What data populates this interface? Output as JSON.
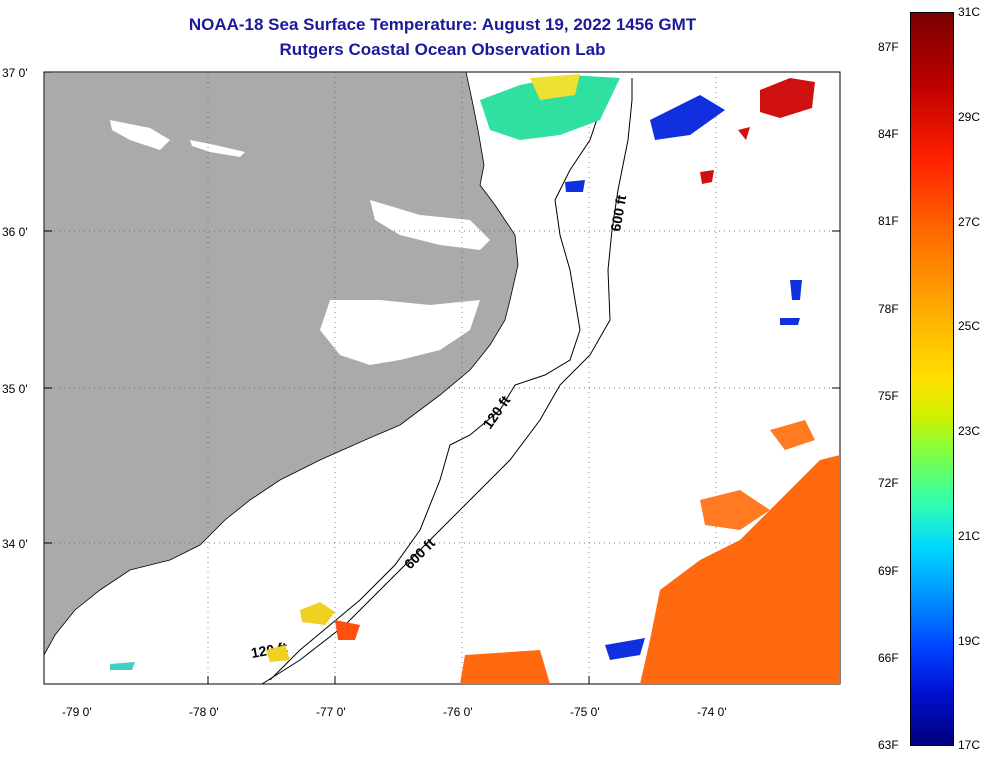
{
  "title_line1": "NOAA-18 Sea Surface Temperature:  August 19, 2022 1456 GMT",
  "title_line2": "Rutgers Coastal Ocean Observation Lab",
  "lat_labels": [
    "37 0'",
    "36 0'",
    "35 0'",
    "34 0'"
  ],
  "lon_labels": [
    "-79 0'",
    "-78 0'",
    "-77 0'",
    "-76 0'",
    "-75 0'",
    "-74 0'"
  ],
  "isobaths": {
    "shallow": "120 ft",
    "deep": "600 ft"
  },
  "colorbar": {
    "fahrenheit": [
      "87F",
      "84F",
      "81F",
      "78F",
      "75F",
      "72F",
      "69F",
      "66F",
      "63F"
    ],
    "celsius": [
      "31C",
      "29C",
      "27C",
      "25C",
      "23C",
      "21C",
      "19C",
      "17C"
    ]
  },
  "colors": {
    "land": "#aaaaaa",
    "title": "#1a1a9a",
    "warm": "#ff6a10",
    "cool": "#1030e0"
  }
}
